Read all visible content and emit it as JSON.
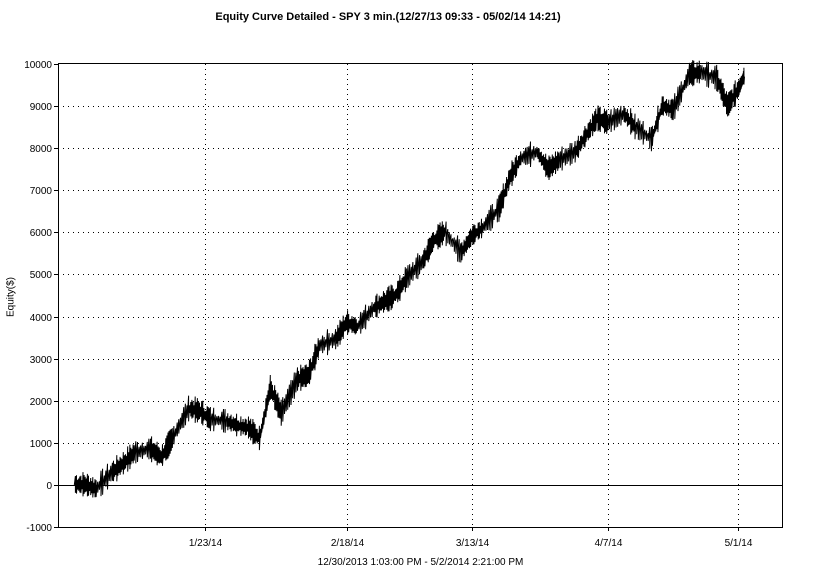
{
  "chart_data": {
    "type": "line",
    "title": "Equity Curve Detailed - SPY 3 min.(12/27/13 09:33 - 05/02/14 14:21)",
    "ylabel": "Equity($)",
    "xlabel": "12/30/2013 1:03:00 PM - 5/2/2014 2:21:00 PM",
    "ylim": [
      -1000,
      10000
    ],
    "yticks": [
      -1000,
      0,
      1000,
      2000,
      3000,
      4000,
      5000,
      6000,
      7000,
      8000,
      9000,
      10000
    ],
    "ytick_labels": [
      "-1000",
      "0",
      "1000",
      "2000",
      "3000",
      "4000",
      "5000",
      "6000",
      "7000",
      "8000",
      "9000",
      "10000"
    ],
    "xlim": [
      "2013-12-27",
      "2014-05-09"
    ],
    "xticks": [
      "2014-01-23",
      "2014-02-18",
      "2014-03-13",
      "2014-04-07",
      "2014-05-01"
    ],
    "xtick_labels": [
      "1/23/14",
      "2/18/14",
      "3/13/14",
      "4/7/14",
      "5/1/14"
    ],
    "grid": true,
    "zero_line": true,
    "series": [
      {
        "line_color": "#000000",
        "x": [
          "2013-12-30",
          "2014-01-01",
          "2014-01-03",
          "2014-01-06",
          "2014-01-08",
          "2014-01-10",
          "2014-01-13",
          "2014-01-15",
          "2014-01-17",
          "2014-01-20",
          "2014-01-22",
          "2014-01-24",
          "2014-01-27",
          "2014-01-29",
          "2014-01-31",
          "2014-02-02",
          "2014-02-04",
          "2014-02-06",
          "2014-02-09",
          "2014-02-11",
          "2014-02-13",
          "2014-02-16",
          "2014-02-18",
          "2014-02-20",
          "2014-02-23",
          "2014-02-25",
          "2014-02-27",
          "2014-03-01",
          "2014-03-04",
          "2014-03-06",
          "2014-03-08",
          "2014-03-11",
          "2014-03-13",
          "2014-03-15",
          "2014-03-18",
          "2014-03-20",
          "2014-03-22",
          "2014-03-25",
          "2014-03-27",
          "2014-03-29",
          "2014-04-01",
          "2014-04-03",
          "2014-04-05",
          "2014-04-07",
          "2014-04-10",
          "2014-04-12",
          "2014-04-15",
          "2014-04-17",
          "2014-04-19",
          "2014-04-22",
          "2014-04-24",
          "2014-04-27",
          "2014-04-29",
          "2014-05-01",
          "2014-05-02"
        ],
        "y": [
          0,
          0,
          -100,
          300,
          500,
          750,
          850,
          650,
          1100,
          1800,
          1750,
          1550,
          1500,
          1400,
          1350,
          1100,
          2300,
          1700,
          2500,
          2600,
          3300,
          3450,
          3850,
          3750,
          4200,
          4350,
          4500,
          4900,
          5300,
          5800,
          6000,
          5500,
          5900,
          6100,
          6550,
          7300,
          7750,
          7900,
          7500,
          7700,
          7900,
          8300,
          8700,
          8600,
          8800,
          8500,
          8200,
          9000,
          8900,
          9750,
          9800,
          9650,
          9000,
          9400,
          9700
        ]
      }
    ]
  }
}
